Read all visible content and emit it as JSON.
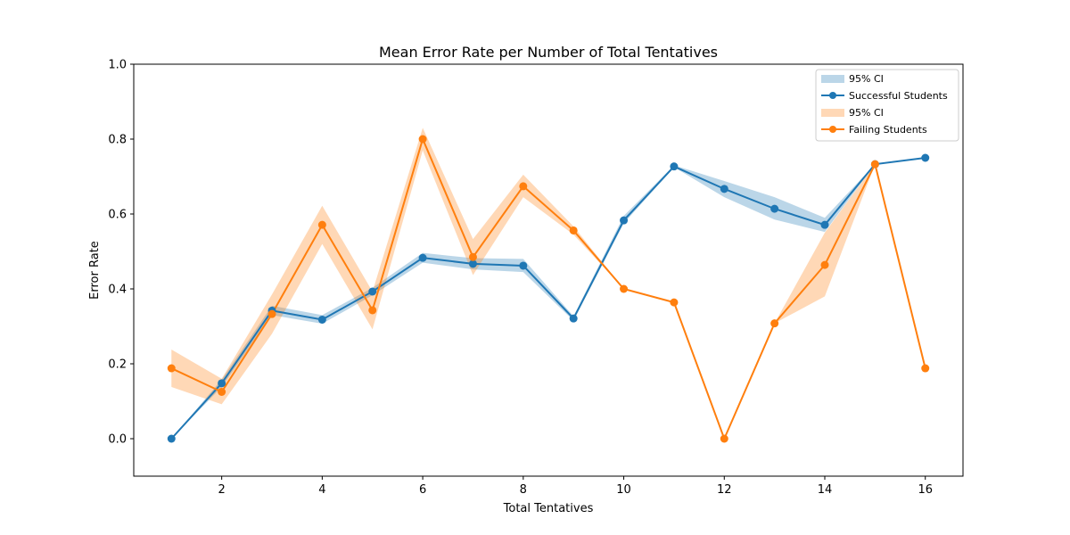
{
  "chart_data": {
    "type": "line",
    "title": "Mean Error Rate per Number of Total Tentatives",
    "xlabel": "Total Tentatives",
    "ylabel": "Error Rate",
    "xlim": [
      0.25,
      16.75
    ],
    "ylim": [
      -0.1,
      1.0
    ],
    "xticks": [
      2,
      4,
      6,
      8,
      10,
      12,
      14,
      16
    ],
    "yticks": [
      0.0,
      0.2,
      0.4,
      0.6,
      0.8,
      1.0
    ],
    "grid": false,
    "legend_position": "top-right",
    "legend": [
      "95% CI",
      "Successful Students",
      "95% CI",
      "Failing Students"
    ],
    "series": [
      {
        "name": "Successful Students",
        "ci_name": "95% CI",
        "color": "#1f77b4",
        "x": [
          1,
          2,
          3,
          4,
          5,
          6,
          7,
          8,
          9,
          10,
          11,
          12,
          13,
          14,
          15,
          16
        ],
        "values": [
          0.0,
          0.148,
          0.342,
          0.318,
          0.393,
          0.483,
          0.467,
          0.462,
          0.321,
          0.583,
          0.727,
          0.667,
          0.614,
          0.571,
          0.733,
          0.75
        ],
        "ci_low": [
          0.0,
          0.138,
          0.33,
          0.307,
          0.383,
          0.47,
          0.452,
          0.445,
          0.315,
          0.575,
          0.725,
          0.645,
          0.585,
          0.552,
          0.733,
          0.75
        ],
        "ci_high": [
          0.0,
          0.158,
          0.355,
          0.33,
          0.403,
          0.496,
          0.482,
          0.48,
          0.327,
          0.595,
          0.73,
          0.688,
          0.645,
          0.59,
          0.733,
          0.75
        ]
      },
      {
        "name": "Failing Students",
        "ci_name": "95% CI",
        "color": "#ff7f0e",
        "x": [
          1,
          2,
          3,
          4,
          5,
          6,
          7,
          8,
          9,
          10,
          11,
          12,
          13,
          14,
          15,
          16
        ],
        "values": [
          0.188,
          0.125,
          0.333,
          0.571,
          0.343,
          0.8,
          0.485,
          0.674,
          0.556,
          0.4,
          0.364,
          0.0,
          0.308,
          0.464,
          0.733,
          0.188
        ],
        "ci_low": [
          0.138,
          0.092,
          0.28,
          0.52,
          0.292,
          0.77,
          0.437,
          0.645,
          0.545,
          0.4,
          0.364,
          0.0,
          0.308,
          0.38,
          0.733,
          0.188
        ],
        "ci_high": [
          0.238,
          0.16,
          0.385,
          0.622,
          0.393,
          0.83,
          0.533,
          0.705,
          0.567,
          0.4,
          0.364,
          0.0,
          0.308,
          0.55,
          0.733,
          0.188
        ]
      }
    ]
  }
}
